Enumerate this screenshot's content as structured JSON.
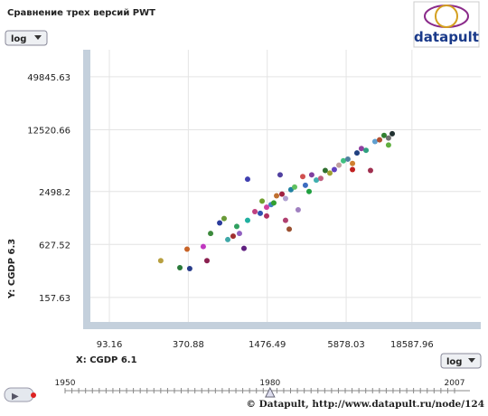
{
  "header": {
    "title": "Сравнение трех версий PWT",
    "logo": "datapult"
  },
  "controls": {
    "y_scale": "log",
    "x_scale": "log",
    "play": "▶"
  },
  "chart_data": {
    "type": "scatter",
    "xlabel": "X: CGDP 6.1",
    "ylabel": "Y: CGDP 6.3",
    "log_x": true,
    "log_y": true,
    "grid": true,
    "xlim": [
      66.8,
      62000
    ],
    "ylim": [
      83,
      101000
    ],
    "xticks": [
      93.16,
      370.88,
      1476.49,
      5878.03,
      18587.96
    ],
    "yticks": [
      157.63,
      627.52,
      2498.2,
      {
        "value": 2498.2,
        "label": "2498.20"
      },
      12520.66,
      49845.63
    ],
    "series": [
      {
        "x": [
          229,
          320,
          380,
          363,
          514,
          482,
          548,
          642,
          694,
          740,
          813,
          866,
          908,
          983,
          1047,
          1189,
          1307,
          1350,
          1460,
          1579,
          1656,
          1738,
          1850,
          1911,
          2034,
          2169,
          2235,
          2384,
          2537,
          2749,
          2879,
          3071,
          3215,
          3485,
          3769,
          4076,
          4418,
          4778,
          5179,
          5601,
          6056,
          6565,
          7100,
          7677,
          8322,
          9000,
          9735,
          10546,
          11412,
          12334,
          13163,
          1047,
          1460,
          2034,
          12334,
          6565
        ],
        "values": [
          411,
          342,
          334,
          555,
          411,
          593,
          835,
          1099,
          1233,
          712,
          779,
          1004,
          835,
          567,
          1176,
          1479,
          1412,
          1944,
          1319,
          1776,
          1857,
          2232,
          3860,
          2336,
          1176,
          936,
          2617,
          2803,
          1548,
          3687,
          2935,
          2498,
          3860,
          3362,
          3521,
          4322,
          4042,
          4422,
          4962,
          5568,
          5817,
          5196,
          6833,
          7667,
          7322,
          4322,
          9196,
          9630,
          10780,
          10083,
          11288,
          3441,
          1658,
          2082,
          8388,
          4422
        ],
        "colors": [
          "#b8a040",
          "#2a7a3a",
          "#283c8a",
          "#c86428",
          "#8a2050",
          "#c038c0",
          "#3c8a3c",
          "#2c3c9c",
          "#6a9a38",
          "#40a8a8",
          "#a03030",
          "#30a060",
          "#9060c0",
          "#602080",
          "#20b0a0",
          "#c04080",
          "#3050b0",
          "#70a030",
          "#b03060",
          "#4080c0",
          "#30a030",
          "#c07030",
          "#5040a0",
          "#a02040",
          "#b04070",
          "#9a5030",
          "#2080a0",
          "#60c060",
          "#a080c0",
          "#d05050",
          "#3c6cc0",
          "#20a040",
          "#8040a0",
          "#40b0b0",
          "#c06080",
          "#307030",
          "#a0a030",
          "#6040c0",
          "#c0a0a0",
          "#40c080",
          "#5080a0",
          "#d08030",
          "#204080",
          "#9040a0",
          "#30a080",
          "#a03050",
          "#60a0d0",
          "#b05030",
          "#308030",
          "#707070",
          "#203030",
          "#4040b0",
          "#d040a0",
          "#b0a0d0",
          "#60b040",
          "#c02020"
        ]
      }
    ]
  },
  "timeline": {
    "min": 1950,
    "current": 1980,
    "max": 2007
  },
  "footer": {
    "copyright": "© Datapult, http://www.datapult.ru/node/124"
  }
}
